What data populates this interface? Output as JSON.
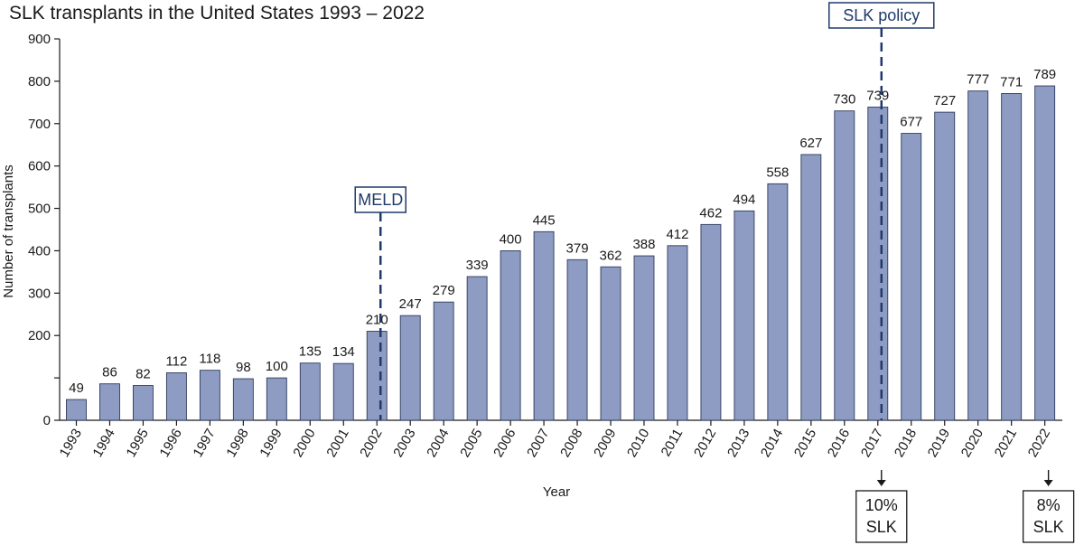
{
  "chart_data": {
    "type": "bar",
    "title": "SLK transplants in the United States 1993 – 2022",
    "xlabel": "Year",
    "ylabel": "Number of transplants",
    "ylim": [
      0,
      900
    ],
    "yticks": [
      "900",
      "800",
      "700",
      "600",
      "500",
      "400",
      "300",
      "200",
      "0"
    ],
    "categories": [
      "1993",
      "1994",
      "1995",
      "1996",
      "1997",
      "1998",
      "1999",
      "2000",
      "2001",
      "2002",
      "2003",
      "2004",
      "2005",
      "2006",
      "2007",
      "2008",
      "2009",
      "2010",
      "2011",
      "2012",
      "2013",
      "2014",
      "2015",
      "2016",
      "2017",
      "2018",
      "2019",
      "2020",
      "2021",
      "2022"
    ],
    "values": [
      49,
      86,
      82,
      112,
      118,
      98,
      100,
      135,
      134,
      210,
      247,
      279,
      339,
      400,
      445,
      379,
      362,
      388,
      412,
      462,
      494,
      558,
      627,
      730,
      739,
      677,
      727,
      777,
      771,
      789
    ],
    "bar_color": "#8e9bc2",
    "annotations": [
      {
        "label": "MELD",
        "year": "2002",
        "line_style": "dashed"
      },
      {
        "label": "SLK policy",
        "year": "2017",
        "line_style": "dashed"
      }
    ],
    "notes": [
      {
        "year": "2017",
        "lines": [
          "10%",
          "SLK"
        ]
      },
      {
        "year": "2022",
        "lines": [
          "8%",
          "SLK"
        ]
      }
    ],
    "annotation_color": "#1f3a6b",
    "grid": false,
    "legend": "none"
  }
}
